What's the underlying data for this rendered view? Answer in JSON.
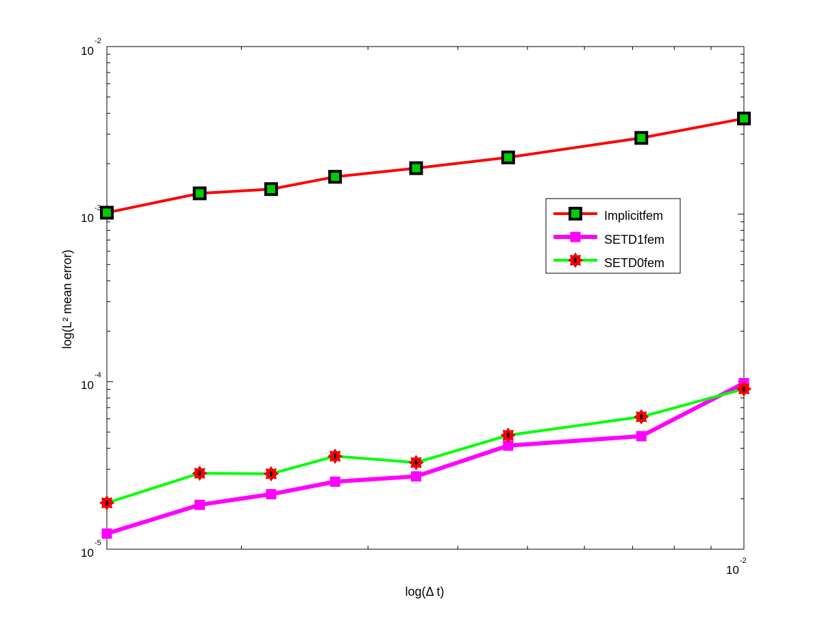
{
  "chart_data": {
    "type": "line",
    "xlabel": "log(Δ t)",
    "ylabel": "log(L² mean error)",
    "xscale": "log",
    "yscale": "log",
    "xlim": [
      0.0013,
      0.01
    ],
    "ylim": [
      1e-05,
      0.01
    ],
    "x": [
      0.0013,
      0.00175,
      0.0022,
      0.0027,
      0.0035,
      0.0047,
      0.0072,
      0.01
    ],
    "y_ticks": [
      {
        "value": 1e-05,
        "base": "10",
        "exp": "-5"
      },
      {
        "value": 0.0001,
        "base": "10",
        "exp": "-4"
      },
      {
        "value": 0.001,
        "base": "10",
        "exp": "-3"
      },
      {
        "value": 0.01,
        "base": "10",
        "exp": "-2"
      }
    ],
    "x_ticks": [
      {
        "value": 0.01,
        "base": "10",
        "exp": "-2"
      }
    ],
    "series": [
      {
        "name": "Implicitfem",
        "values": [
          0.00102,
          0.00133,
          0.00141,
          0.00167,
          0.00188,
          0.00218,
          0.00285,
          0.00372
        ],
        "line_color": "#ff0000",
        "marker": "square",
        "marker_fill": "#00cc00",
        "marker_edge": "#000000"
      },
      {
        "name": "SETD1fem",
        "values": [
          1.24e-05,
          1.84e-05,
          2.13e-05,
          2.53e-05,
          2.72e-05,
          4.15e-05,
          4.73e-05,
          9.8e-05
        ],
        "line_color": "#ff00ff",
        "marker": "square",
        "marker_fill": "#ff00ff",
        "marker_edge": "#ff00ff"
      },
      {
        "name": "SETD0fem",
        "values": [
          1.89e-05,
          2.84e-05,
          2.82e-05,
          3.59e-05,
          3.29e-05,
          4.79e-05,
          6.17e-05,
          9.05e-05
        ],
        "line_color": "#00ff00",
        "marker": "gear",
        "marker_fill": "#ff0000",
        "marker_edge": "#000000"
      }
    ],
    "legend_position": "right-middle",
    "grid": false
  }
}
